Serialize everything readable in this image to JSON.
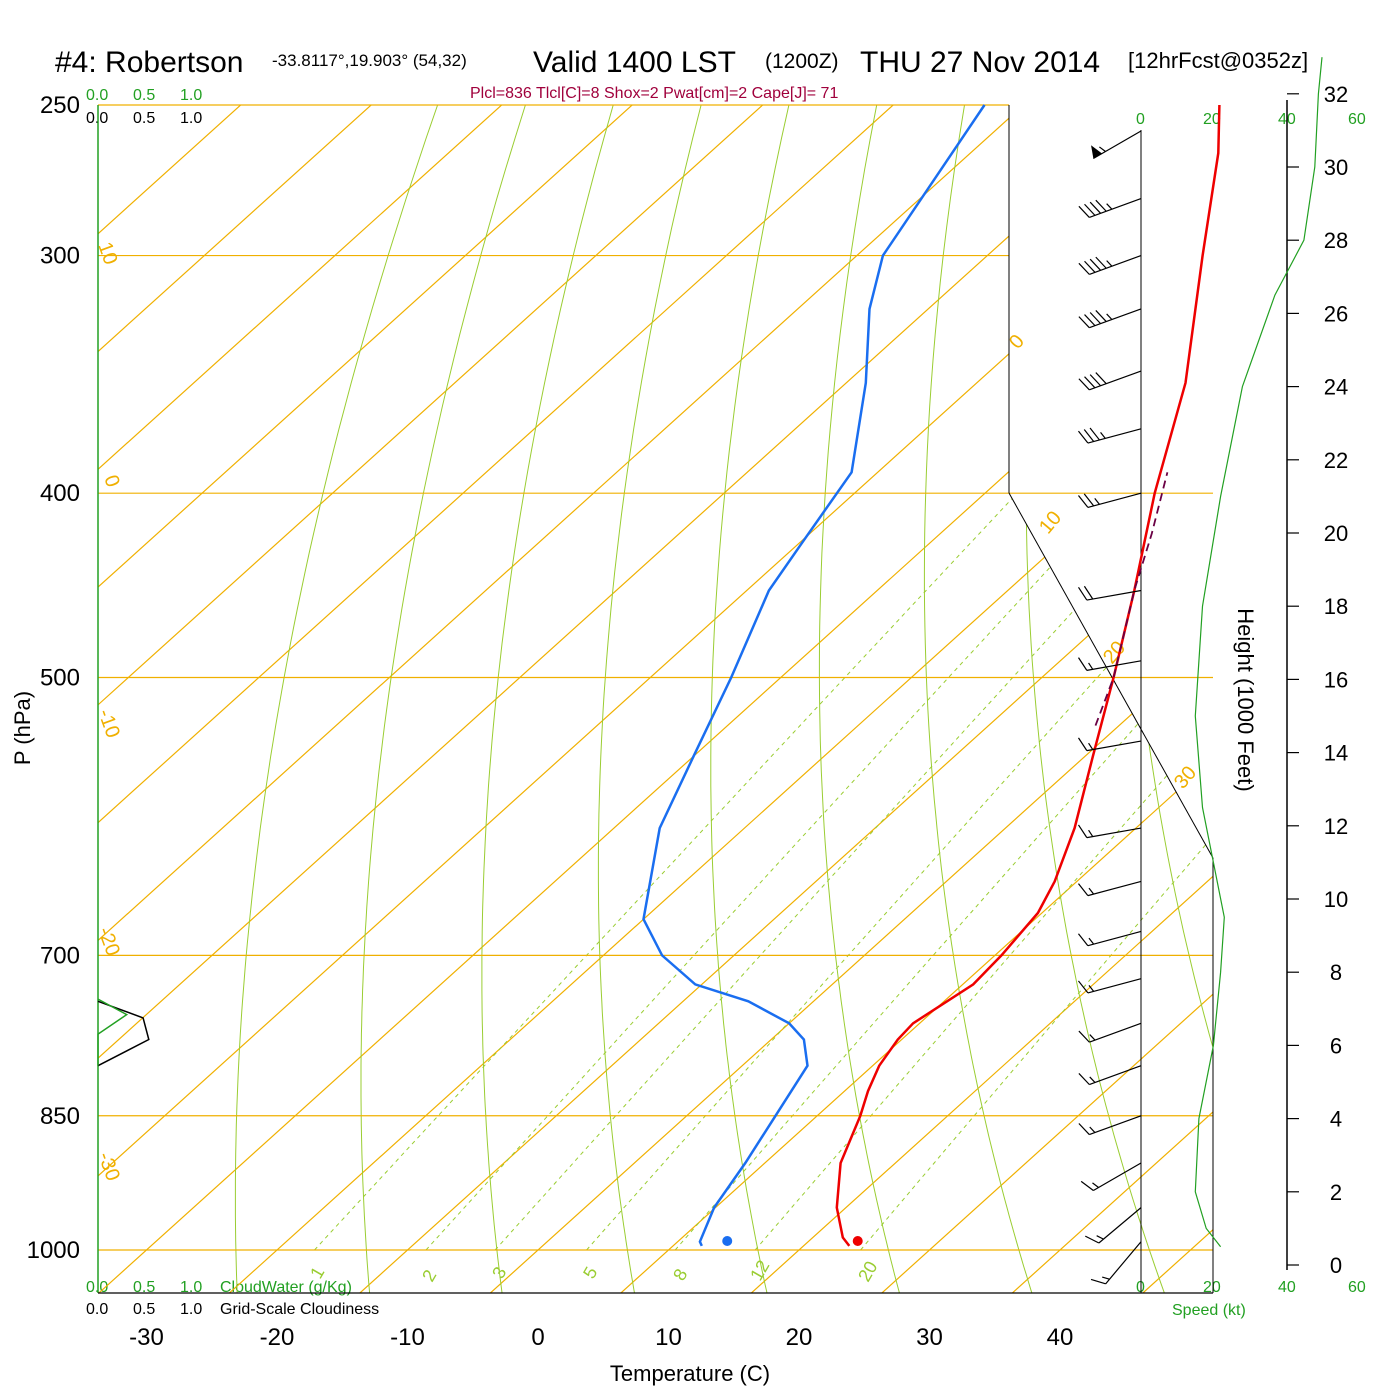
{
  "header": {
    "station": "#4: Robertson",
    "coords": "-33.8117°,19.903° (54,32)",
    "valid": "Valid 1400 LST",
    "utc": "(1200Z)",
    "date": "THU 27 Nov 2014",
    "forecast": "[12hrFcst@0352z]",
    "indices": "Plcl=836 Tlcl[C]=8 Shox=2 Pwat[cm]=2 Cape[J]= 71"
  },
  "cloud_scale": {
    "top_green": [
      "0.0",
      "0.5",
      "1.0"
    ],
    "top_black": [
      "0.0",
      "0.5",
      "1.0"
    ],
    "bottom_green": [
      "0.0",
      "0.5",
      "1.0"
    ],
    "bottom_black": [
      "0.0",
      "0.5",
      "1.0"
    ],
    "cloudwater_label": "CloudWater (g/Kg)",
    "cloudiness_label": "Grid-Scale Cloudiness"
  },
  "speed_axis": {
    "ticks_top": [
      "0",
      "20",
      "40",
      "60"
    ],
    "ticks_bottom": [
      "0",
      "20",
      "40",
      "60"
    ],
    "label": "Speed (kt)"
  },
  "height_axis": {
    "label": "Height (1000 Feet)",
    "ticks": [
      "0",
      "2",
      "4",
      "6",
      "8",
      "10",
      "12",
      "14",
      "16",
      "18",
      "20",
      "22",
      "24",
      "26",
      "28",
      "30",
      "32"
    ]
  },
  "colors": {
    "temperature": "#ee0000",
    "dewpoint": "#1a6ef0",
    "isotherm": "#f0b000",
    "dry_adiabat": "#9acd32",
    "mixing_ratio": "#9acd32",
    "cloudwater": "#22a022",
    "parcel": "#6a0044"
  },
  "chart_data": {
    "type": "line",
    "diagram": "skew-T log-P",
    "xlabel": "Temperature (C)",
    "ylabel": "P (hPa)",
    "pressure_ticks": [
      {
        "p": 250,
        "label": "250"
      },
      {
        "p": 300,
        "label": "300"
      },
      {
        "p": 400,
        "label": "400"
      },
      {
        "p": 500,
        "label": "500"
      },
      {
        "p": 700,
        "label": "700"
      },
      {
        "p": 850,
        "label": "850"
      },
      {
        "p": 1000,
        "label": "1000"
      }
    ],
    "temperature_ticks": [
      "-30",
      "-20",
      "-10",
      "0",
      "10",
      "20",
      "30",
      "40"
    ],
    "isotherm_labels": [
      "10",
      "0",
      "-10",
      "-20",
      "-30",
      "0",
      "10",
      "20",
      "30"
    ],
    "mixing_ratio_labels": [
      "1",
      "2",
      "3",
      "5",
      "8",
      "12",
      "20"
    ],
    "series": [
      {
        "name": "Temperature",
        "points": [
          {
            "p": 995,
            "t": 23.5
          },
          {
            "p": 985,
            "t": 22.3
          },
          {
            "p": 950,
            "t": 19.3
          },
          {
            "p": 900,
            "t": 15.8
          },
          {
            "p": 850,
            "t": 13.3
          },
          {
            "p": 825,
            "t": 11.8
          },
          {
            "p": 800,
            "t": 10.5
          },
          {
            "p": 775,
            "t": 9.7
          },
          {
            "p": 760,
            "t": 9.5
          },
          {
            "p": 725,
            "t": 10.8
          },
          {
            "p": 700,
            "t": 10.5
          },
          {
            "p": 665,
            "t": 9.7
          },
          {
            "p": 640,
            "t": 8.3
          },
          {
            "p": 600,
            "t": 5.3
          },
          {
            "p": 550,
            "t": 0.6
          },
          {
            "p": 500,
            "t": -4.5
          },
          {
            "p": 450,
            "t": -10.3
          },
          {
            "p": 400,
            "t": -17.0
          },
          {
            "p": 350,
            "t": -24.0
          },
          {
            "p": 300,
            "t": -33.5
          },
          {
            "p": 265,
            "t": -41.0
          },
          {
            "p": 250,
            "t": -45.0
          }
        ]
      },
      {
        "name": "Dewpoint",
        "points": [
          {
            "p": 995,
            "t": 12.2
          },
          {
            "p": 990,
            "t": 11.7
          },
          {
            "p": 950,
            "t": 9.9
          },
          {
            "p": 900,
            "t": 8.5
          },
          {
            "p": 850,
            "t": 6.8
          },
          {
            "p": 800,
            "t": 5.0
          },
          {
            "p": 775,
            "t": 2.5
          },
          {
            "p": 760,
            "t": 0.0
          },
          {
            "p": 740,
            "t": -5.0
          },
          {
            "p": 725,
            "t": -10.5
          },
          {
            "p": 700,
            "t": -15.5
          },
          {
            "p": 670,
            "t": -20.0
          },
          {
            "p": 600,
            "t": -26.5
          },
          {
            "p": 550,
            "t": -30.0
          },
          {
            "p": 500,
            "t": -33.8
          },
          {
            "p": 450,
            "t": -38.3
          },
          {
            "p": 425,
            "t": -39.8
          },
          {
            "p": 390,
            "t": -42.0
          },
          {
            "p": 350,
            "t": -48.5
          },
          {
            "p": 320,
            "t": -54.5
          },
          {
            "p": 300,
            "t": -58.0
          },
          {
            "p": 250,
            "t": -63.0
          }
        ]
      },
      {
        "name": "Parcel",
        "points": [
          {
            "p": 530,
            "t": -1.8
          },
          {
            "p": 500,
            "t": -4.5
          },
          {
            "p": 450,
            "t": -10.3
          },
          {
            "p": 420,
            "t": -13.8
          },
          {
            "p": 390,
            "t": -17.8
          }
        ]
      }
    ],
    "surface": {
      "p": 995,
      "temperature": 24.5,
      "dewpoint": 14.5
    },
    "cloudiness": [
      {
        "p": 740,
        "value": 0.0
      },
      {
        "p": 755,
        "value": 0.55
      },
      {
        "p": 775,
        "value": 0.62
      },
      {
        "p": 800,
        "value": 0.0
      }
    ],
    "cloudwater": [
      {
        "p": 738,
        "value": 0.0
      },
      {
        "p": 752,
        "value": 0.35
      },
      {
        "p": 770,
        "value": 0.0
      },
      {
        "p": 800,
        "value": 0.0
      }
    ],
    "wind_speed_kt": [
      {
        "h": 0.5,
        "s": 22
      },
      {
        "h": 1.0,
        "s": 18
      },
      {
        "h": 2.0,
        "s": 15
      },
      {
        "h": 4.0,
        "s": 16
      },
      {
        "h": 6.0,
        "s": 20
      },
      {
        "h": 8.0,
        "s": 22
      },
      {
        "h": 9.5,
        "s": 23
      },
      {
        "h": 11.0,
        "s": 20
      },
      {
        "h": 12.5,
        "s": 17
      },
      {
        "h": 15.0,
        "s": 15
      },
      {
        "h": 18.0,
        "s": 17
      },
      {
        "h": 21.0,
        "s": 22
      },
      {
        "h": 24.0,
        "s": 28
      },
      {
        "h": 26.5,
        "s": 37
      },
      {
        "h": 28.0,
        "s": 45
      },
      {
        "h": 30.0,
        "s": 48
      },
      {
        "h": 32.0,
        "s": 49
      },
      {
        "h": 33.0,
        "s": 50
      }
    ],
    "wind_barbs": [
      {
        "p": 258,
        "dir": 300,
        "kt": 55
      },
      {
        "p": 280,
        "dir": 290,
        "kt": 45
      },
      {
        "p": 300,
        "dir": 290,
        "kt": 45
      },
      {
        "p": 320,
        "dir": 290,
        "kt": 45
      },
      {
        "p": 345,
        "dir": 290,
        "kt": 40
      },
      {
        "p": 370,
        "dir": 285,
        "kt": 35
      },
      {
        "p": 400,
        "dir": 285,
        "kt": 25
      },
      {
        "p": 450,
        "dir": 280,
        "kt": 20
      },
      {
        "p": 490,
        "dir": 280,
        "kt": 15
      },
      {
        "p": 540,
        "dir": 280,
        "kt": 15
      },
      {
        "p": 600,
        "dir": 280,
        "kt": 15
      },
      {
        "p": 640,
        "dir": 285,
        "kt": 15
      },
      {
        "p": 680,
        "dir": 285,
        "kt": 15
      },
      {
        "p": 720,
        "dir": 285,
        "kt": 15
      },
      {
        "p": 760,
        "dir": 290,
        "kt": 15
      },
      {
        "p": 800,
        "dir": 290,
        "kt": 15
      },
      {
        "p": 850,
        "dir": 290,
        "kt": 15
      },
      {
        "p": 900,
        "dir": 300,
        "kt": 15
      },
      {
        "p": 950,
        "dir": 310,
        "kt": 15
      },
      {
        "p": 990,
        "dir": 320,
        "kt": 15
      }
    ]
  }
}
